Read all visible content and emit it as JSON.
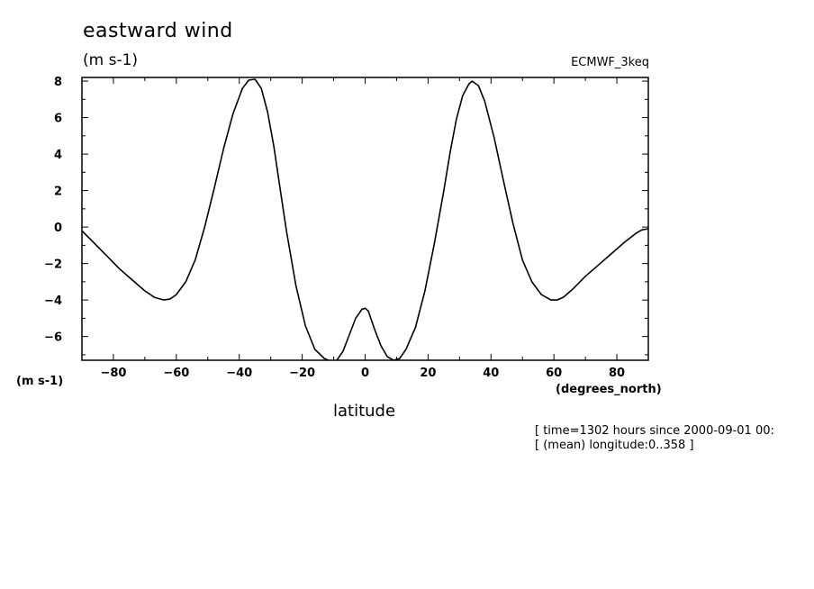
{
  "chart_data": {
    "type": "line",
    "title": "eastward wind",
    "units": "(m s-1)",
    "source": "ECMWF_3keq",
    "ylabel": "(m s-1)",
    "xlabel": "latitude",
    "xunits": "(degrees_north)",
    "xlim": [
      -90,
      90
    ],
    "ylim": [
      -7.3,
      8.2
    ],
    "xticks": [
      -80,
      -60,
      -40,
      -20,
      0,
      20,
      40,
      60,
      80
    ],
    "yticks": [
      -6,
      -4,
      -2,
      0,
      2,
      4,
      6,
      8
    ],
    "grid": false,
    "legend": "none",
    "annotations": [
      "[ time=1302 hours since 2000-09-01 00:",
      "[ (mean) longitude:0..358 ]"
    ],
    "series": [
      {
        "x": [
          -90,
          -86,
          -82,
          -78,
          -74,
          -70,
          -67,
          -64,
          -62,
          -60,
          -57,
          -54,
          -51,
          -48,
          -45,
          -42,
          -39,
          -37,
          -35,
          -33,
          -31,
          -29,
          -27,
          -25,
          -22,
          -19,
          -16,
          -13,
          -11,
          -9,
          -7,
          -5,
          -3,
          -1,
          0,
          1,
          3,
          5,
          7,
          9,
          11,
          13,
          16,
          19,
          22,
          25,
          27,
          29,
          31,
          33,
          34,
          36,
          38,
          41,
          44,
          47,
          50,
          53,
          56,
          59,
          61,
          63,
          66,
          70,
          74,
          78,
          82,
          86,
          88,
          90
        ],
        "values": [
          -0.2,
          -0.9,
          -1.6,
          -2.3,
          -2.9,
          -3.5,
          -3.85,
          -4.0,
          -3.95,
          -3.7,
          -3.0,
          -1.8,
          0.0,
          2.1,
          4.3,
          6.2,
          7.6,
          8.05,
          8.1,
          7.6,
          6.3,
          4.4,
          2.1,
          -0.2,
          -3.2,
          -5.4,
          -6.7,
          -7.2,
          -7.35,
          -7.3,
          -6.8,
          -5.9,
          -5.0,
          -4.5,
          -4.45,
          -4.6,
          -5.6,
          -6.5,
          -7.1,
          -7.3,
          -7.2,
          -6.7,
          -5.5,
          -3.5,
          -0.9,
          2.0,
          4.1,
          5.9,
          7.2,
          7.85,
          8.0,
          7.75,
          6.9,
          4.9,
          2.5,
          0.2,
          -1.8,
          -3.0,
          -3.7,
          -4.0,
          -4.0,
          -3.85,
          -3.4,
          -2.7,
          -2.1,
          -1.5,
          -0.9,
          -0.35,
          -0.15,
          -0.1
        ]
      }
    ]
  }
}
